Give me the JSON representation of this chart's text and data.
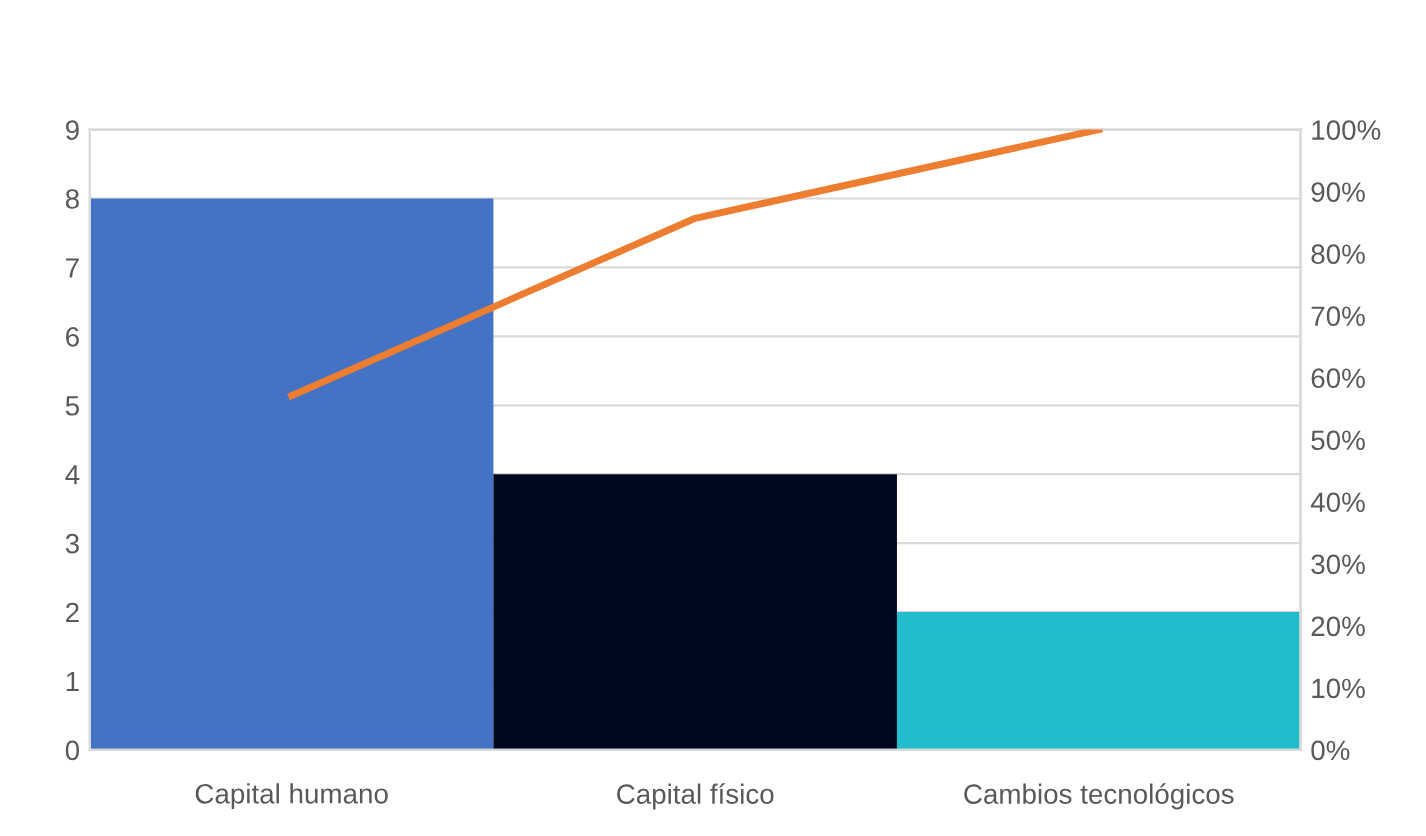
{
  "chart_data": {
    "type": "bar",
    "categories": [
      "Capital humano",
      "Capital físico",
      "Cambios tecnológicos"
    ],
    "series": [
      {
        "colors": [
          "#4472c4",
          "#000820",
          "#23bccd"
        ],
        "values": [
          8,
          4,
          2
        ]
      },
      {
        "type": "line",
        "axis": "y2",
        "color": "#ed7d31",
        "values": [
          57.1,
          85.7,
          100
        ]
      }
    ],
    "ylim": [
      0,
      9
    ],
    "yticks": [
      0,
      1,
      2,
      3,
      4,
      5,
      6,
      7,
      8,
      9
    ],
    "y2lim": [
      0,
      100
    ],
    "y2ticks": [
      {
        "value": 0,
        "label": "0%"
      },
      {
        "value": 10,
        "label": "10%"
      },
      {
        "value": 20,
        "label": "20%"
      },
      {
        "value": 30,
        "label": "30%"
      },
      {
        "value": 40,
        "label": "40%"
      },
      {
        "value": 50,
        "label": "50%"
      },
      {
        "value": 60,
        "label": "60%"
      },
      {
        "value": 70,
        "label": "70%"
      },
      {
        "value": 80,
        "label": "80%"
      },
      {
        "value": 90,
        "label": "90%"
      },
      {
        "value": 100,
        "label": "100%"
      }
    ],
    "grid": "y",
    "legend": false,
    "marker": "none"
  }
}
